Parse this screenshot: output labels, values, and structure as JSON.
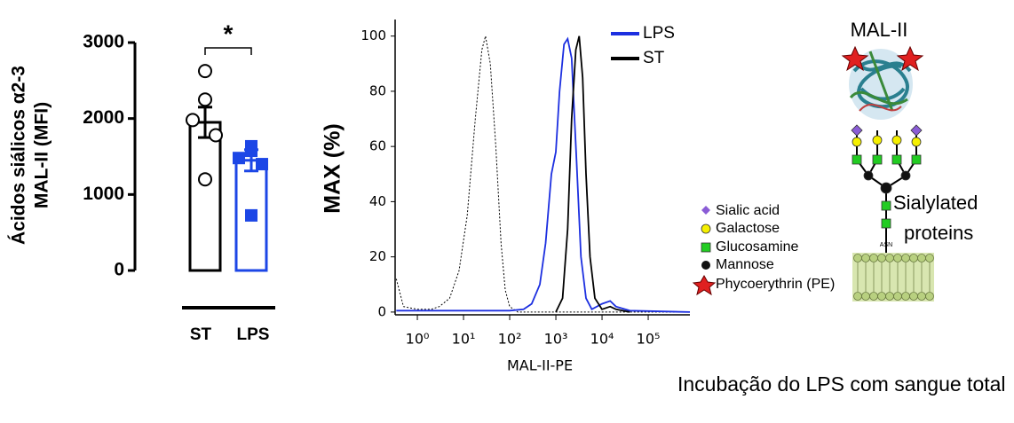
{
  "chart_data": [
    {
      "type": "bar",
      "ylabel_lines": [
        "Ácidos siálicos α2-3",
        "MAL-II (MFI)"
      ],
      "categories": [
        "ST",
        "LPS"
      ],
      "values": [
        1950,
        1450
      ],
      "errors": [
        200,
        140
      ],
      "colors": [
        "#000000",
        "#1c46e6"
      ],
      "markers": [
        "circle-open",
        "square"
      ],
      "points": [
        [
          2625,
          2250,
          1980,
          1780,
          1200
        ],
        [
          1635,
          1575,
          1480,
          1400,
          725
        ]
      ],
      "annotation": "*",
      "ylim": [
        0,
        3000
      ],
      "yticks": [
        0,
        1000,
        2000,
        3000
      ]
    },
    {
      "type": "line",
      "xlabel": "MAL-II-PE",
      "ylabel": "MAX (%)",
      "xscale": "log",
      "xlim": [
        0.33,
        800000
      ],
      "ylim": [
        -1,
        106
      ],
      "xticks": [
        {
          "value": 1,
          "label": "10⁰"
        },
        {
          "value": 10,
          "label": "10¹"
        },
        {
          "value": 100,
          "label": "10²"
        },
        {
          "value": 1000,
          "label": "10³"
        },
        {
          "value": 10000,
          "label": "10⁴"
        },
        {
          "value": 100000,
          "label": "10⁵"
        }
      ],
      "yticks": [
        0,
        20,
        40,
        60,
        80,
        100
      ],
      "legend": "upper right",
      "series": [
        {
          "color": "#000000",
          "dashed": true,
          "x": [
            0.35,
            0.5,
            1,
            2,
            3,
            5,
            8,
            12,
            18,
            25,
            30,
            38,
            50,
            65,
            80,
            100,
            150,
            1000,
            100000,
            800000
          ],
          "values": [
            12,
            2,
            1,
            1,
            2,
            5,
            15,
            35,
            70,
            95,
            100,
            90,
            60,
            25,
            8,
            2,
            0,
            0,
            0,
            0
          ]
        },
        {
          "name": "LPS",
          "color": "#1c2fe0",
          "dashed": false,
          "x": [
            0.35,
            100,
            200,
            300,
            450,
            600,
            800,
            1000,
            1200,
            1500,
            1800,
            2200,
            2800,
            3500,
            4500,
            6000,
            10000,
            15000,
            20000,
            40000,
            800000
          ],
          "values": [
            0.5,
            0.5,
            1,
            3,
            10,
            25,
            50,
            58,
            80,
            97,
            99,
            92,
            55,
            20,
            5,
            1,
            3,
            4,
            2,
            0.5,
            0
          ]
        },
        {
          "name": "ST",
          "color": "#000000",
          "dashed": false,
          "x": [
            1000,
            1400,
            1800,
            2200,
            2700,
            3200,
            3800,
            4500,
            5500,
            7000,
            10000,
            15000,
            20000,
            40000
          ],
          "values": [
            0,
            5,
            30,
            70,
            95,
            100,
            85,
            50,
            20,
            5,
            1,
            2,
            1,
            0
          ]
        }
      ]
    }
  ],
  "diagram": {
    "lectin": "MAL-II",
    "label_lines": [
      "Sialylated",
      "proteins"
    ],
    "anchor": "ASN",
    "legend": [
      "Sialic acid",
      "Galactose",
      "Glucosamine",
      "Mannose",
      "Phycoerythrin (PE)"
    ],
    "caption": "Incubação do LPS com sangue total"
  }
}
